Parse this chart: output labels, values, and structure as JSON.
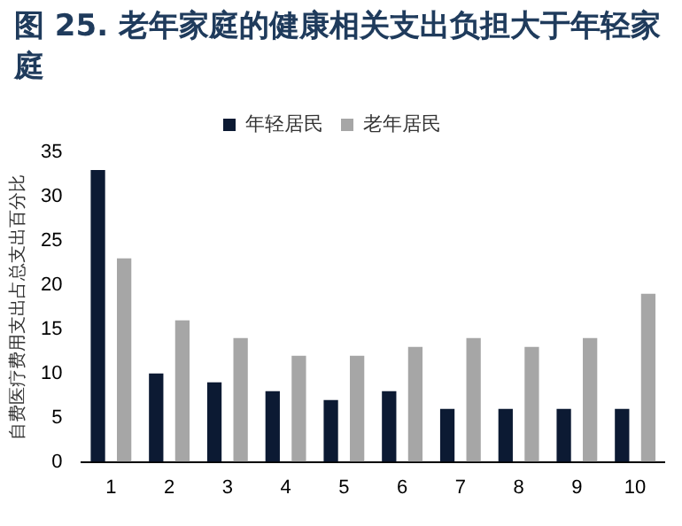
{
  "chart_data": {
    "type": "bar",
    "title": "图 25. 老年家庭的健康相关支出负担大于年轻家庭",
    "ylabel": "自费医疗费用支出占总支出百分比",
    "categories": [
      "1",
      "2",
      "3",
      "4",
      "5",
      "6",
      "7",
      "8",
      "9",
      "10"
    ],
    "series": [
      {
        "name": "年轻居民",
        "color": "#0c1a33",
        "values": [
          33,
          10,
          9,
          8,
          7,
          8,
          6,
          6,
          6,
          6
        ]
      },
      {
        "name": "老年居民",
        "color": "#a6a6a6",
        "values": [
          23,
          16,
          14,
          12,
          12,
          13,
          14,
          13,
          14,
          19
        ]
      }
    ],
    "ylim": [
      0,
      35
    ],
    "yticks": [
      0,
      5,
      10,
      15,
      20,
      25,
      30,
      35
    ],
    "grid": false,
    "legend": "top"
  }
}
